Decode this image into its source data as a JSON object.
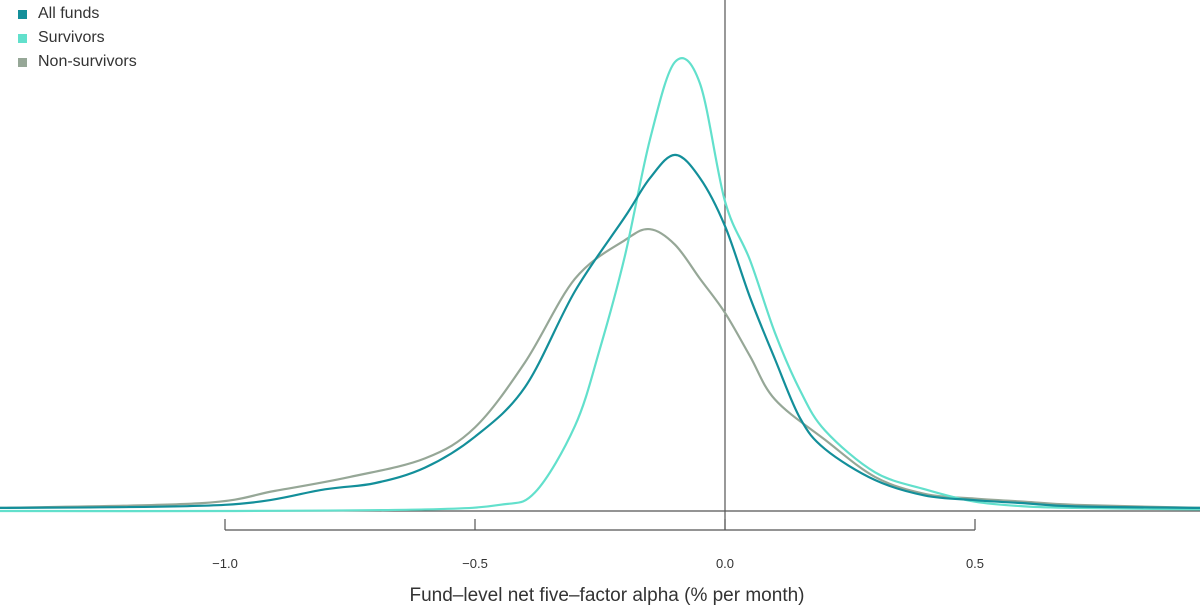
{
  "chart_data": {
    "type": "line",
    "title": "",
    "xlabel": "Fund–level net five–factor alpha (% per month)",
    "ylabel": "",
    "xlim": [
      -1.45,
      0.95
    ],
    "ylim": [
      0,
      3.3
    ],
    "x_ticks": [
      -1.0,
      -0.5,
      0.0,
      0.5
    ],
    "x_tick_labels": [
      "−1.0",
      "−0.5",
      "0.0",
      "0.5"
    ],
    "reference_line_x": 0.0,
    "grid": false,
    "legend_position": "top-left",
    "series": [
      {
        "name": "All funds",
        "color": "#138f9a",
        "points": [
          [
            -1.45,
            0.02
          ],
          [
            -1.0,
            0.04
          ],
          [
            -0.8,
            0.14
          ],
          [
            -0.7,
            0.18
          ],
          [
            -0.6,
            0.28
          ],
          [
            -0.5,
            0.48
          ],
          [
            -0.4,
            0.8
          ],
          [
            -0.3,
            1.42
          ],
          [
            -0.2,
            1.9
          ],
          [
            -0.15,
            2.15
          ],
          [
            -0.1,
            2.3
          ],
          [
            -0.05,
            2.15
          ],
          [
            0.0,
            1.84
          ],
          [
            0.05,
            1.38
          ],
          [
            0.1,
            0.98
          ],
          [
            0.15,
            0.6
          ],
          [
            0.2,
            0.4
          ],
          [
            0.3,
            0.2
          ],
          [
            0.4,
            0.1
          ],
          [
            0.5,
            0.07
          ],
          [
            0.6,
            0.05
          ],
          [
            0.7,
            0.03
          ],
          [
            0.95,
            0.02
          ]
        ]
      },
      {
        "name": "Survivors",
        "color": "#62e0cc",
        "points": [
          [
            -1.45,
            0.0
          ],
          [
            -1.0,
            0.0
          ],
          [
            -0.6,
            0.01
          ],
          [
            -0.45,
            0.04
          ],
          [
            -0.38,
            0.12
          ],
          [
            -0.3,
            0.55
          ],
          [
            -0.25,
            1.05
          ],
          [
            -0.2,
            1.65
          ],
          [
            -0.15,
            2.4
          ],
          [
            -0.1,
            2.9
          ],
          [
            -0.05,
            2.76
          ],
          [
            0.0,
            2.0
          ],
          [
            0.05,
            1.62
          ],
          [
            0.1,
            1.15
          ],
          [
            0.15,
            0.78
          ],
          [
            0.2,
            0.52
          ],
          [
            0.3,
            0.25
          ],
          [
            0.4,
            0.14
          ],
          [
            0.5,
            0.06
          ],
          [
            0.6,
            0.03
          ],
          [
            0.7,
            0.02
          ],
          [
            0.95,
            0.01
          ]
        ]
      },
      {
        "name": "Non-survivors",
        "color": "#96a797",
        "points": [
          [
            -1.45,
            0.02
          ],
          [
            -1.05,
            0.05
          ],
          [
            -0.9,
            0.13
          ],
          [
            -0.75,
            0.22
          ],
          [
            -0.6,
            0.34
          ],
          [
            -0.5,
            0.54
          ],
          [
            -0.4,
            0.96
          ],
          [
            -0.3,
            1.5
          ],
          [
            -0.2,
            1.75
          ],
          [
            -0.15,
            1.82
          ],
          [
            -0.1,
            1.72
          ],
          [
            -0.05,
            1.5
          ],
          [
            0.0,
            1.28
          ],
          [
            0.05,
            1.0
          ],
          [
            0.1,
            0.72
          ],
          [
            0.2,
            0.46
          ],
          [
            0.3,
            0.22
          ],
          [
            0.4,
            0.11
          ],
          [
            0.5,
            0.08
          ],
          [
            0.6,
            0.06
          ],
          [
            0.7,
            0.04
          ],
          [
            0.95,
            0.02
          ]
        ]
      }
    ]
  }
}
